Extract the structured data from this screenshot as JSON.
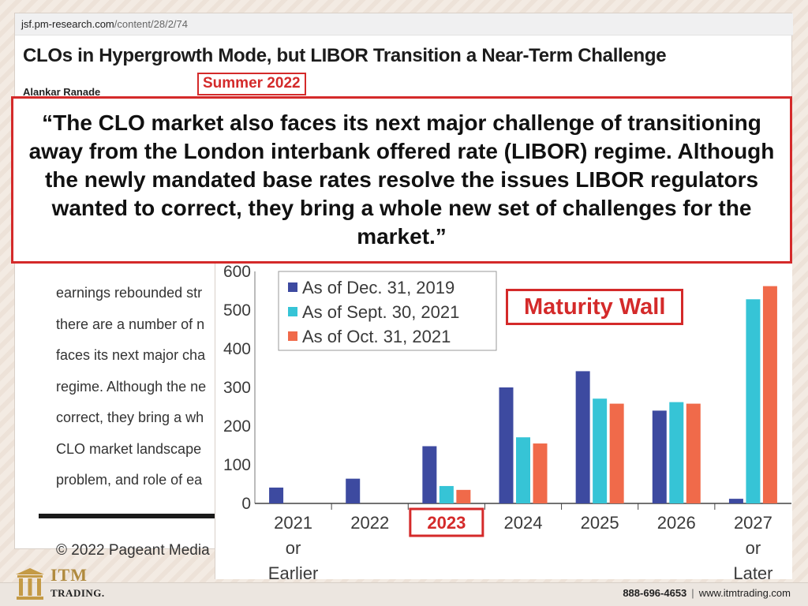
{
  "browser": {
    "url_host": "jsf.pm-research.com",
    "url_path": "/content/28/2/74"
  },
  "article": {
    "title": "CLOs in Hypergrowth Mode, but LIBOR Transition a Near-Term Challenge",
    "author": "Alankar Ranade",
    "date_tag": "Summer 2022",
    "body_lines": [
      "earnings rebounded str",
      "there are a number of n",
      "faces its next major cha",
      "regime. Although the ne",
      "correct, they bring a wh",
      "CLO market landscape",
      "problem, and role of ea"
    ],
    "copyright": "© 2022 Pageant Media"
  },
  "quote": {
    "text": "“The CLO market also faces its next major challenge of transitioning away from the London interbank offered rate (LIBOR) regime. Although the newly mandated base rates resolve the issues LIBOR regulators wanted to correct, they bring a whole new set of challenges for the market.”"
  },
  "annotation": {
    "maturity_wall": "Maturity Wall",
    "highlight_category_index": 2
  },
  "chart_data": {
    "type": "bar",
    "categories": [
      [
        "2021",
        "or",
        "Earlier"
      ],
      [
        "2022"
      ],
      [
        "2023"
      ],
      [
        "2024"
      ],
      [
        "2025"
      ],
      [
        "2026"
      ],
      [
        "2027",
        "or",
        "Later"
      ]
    ],
    "series": [
      {
        "name": "As of Dec. 31, 2019",
        "color": "#3d4aa0",
        "values": [
          41,
          64,
          148,
          300,
          342,
          240,
          12
        ]
      },
      {
        "name": "As of Sept. 30, 2021",
        "color": "#36c4d6",
        "values": [
          0,
          0,
          45,
          171,
          271,
          262,
          528
        ]
      },
      {
        "name": "As of Oct. 31, 2021",
        "color": "#f06a4a",
        "values": [
          0,
          0,
          35,
          155,
          258,
          258,
          562
        ]
      }
    ],
    "y_ticks": [
      "0",
      "100",
      "200",
      "300",
      "400",
      "500",
      "600"
    ],
    "ylim": [
      0,
      600
    ],
    "legend_position": "top-left",
    "grid": false
  },
  "footer": {
    "logo_name": "ITM",
    "logo_sub": "TRADING.",
    "phone": "888-696-4653",
    "separator": "|",
    "website": "www.itmtrading.com"
  }
}
